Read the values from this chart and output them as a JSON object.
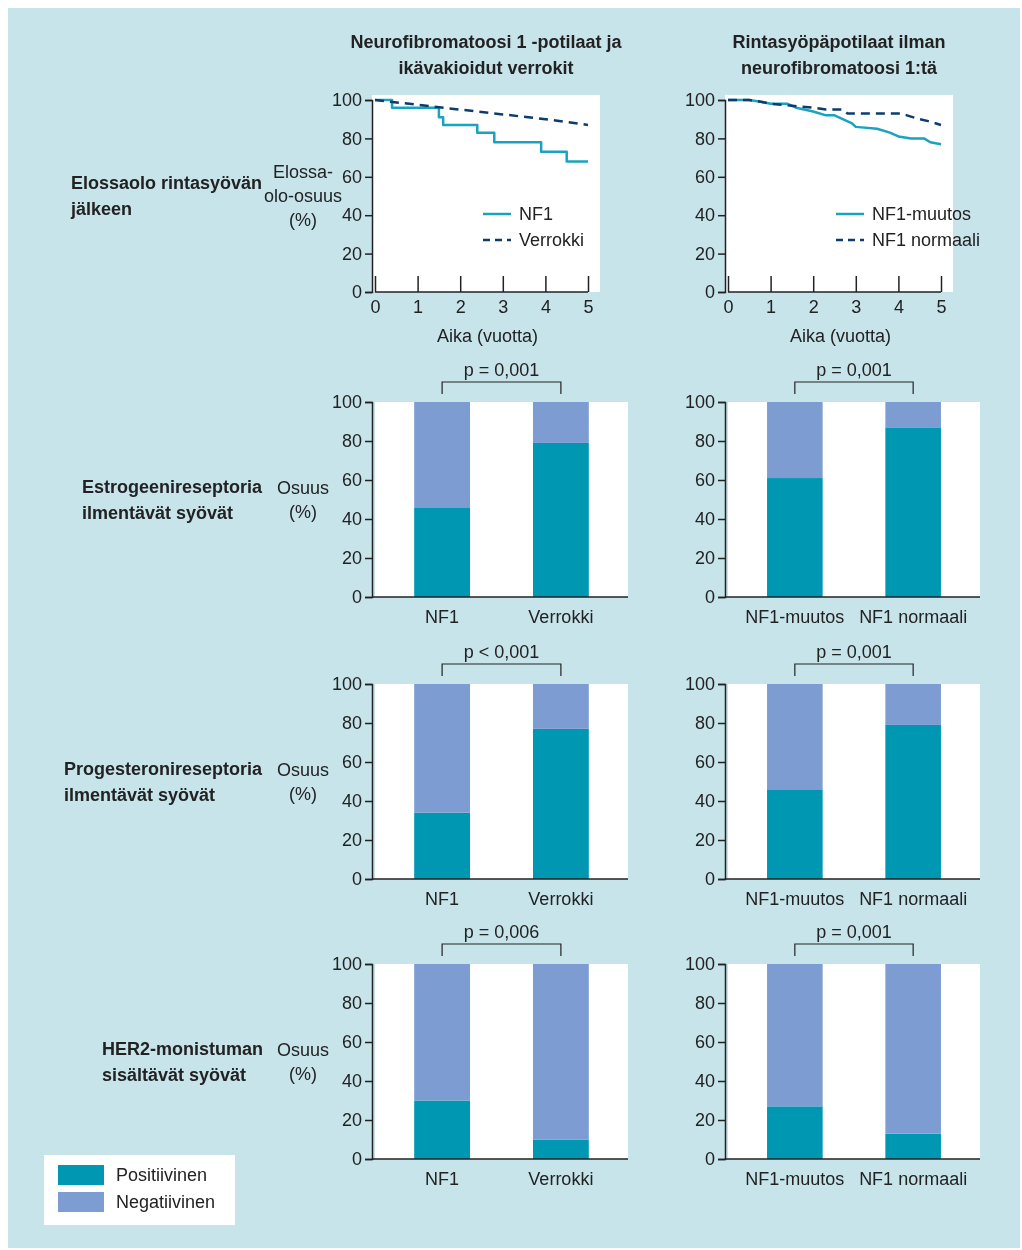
{
  "chart_data": [
    {
      "type": "line",
      "title": "Neurofibromatoosi 1 -potilaat ja ikävakioidut verrokit",
      "subtitle": "Elossaolo rintasyövän jälkeen",
      "xlabel": "Aika (vuotta)",
      "ylabel": "Elossa-olo-osuus (%)",
      "xlim": [
        0,
        5
      ],
      "xticks": [
        0,
        1,
        2,
        3,
        4,
        5
      ],
      "ylim": [
        0,
        100
      ],
      "yticks": [
        0,
        20,
        40,
        60,
        80,
        100
      ],
      "legend": "bottom right",
      "series": [
        {
          "name": "NF1",
          "type": "step",
          "color": "#1aa3be",
          "line_style": "solid",
          "x": [
            0,
            0.4,
            1.5,
            1.6,
            2.4,
            2.8,
            3.9,
            4.5,
            5
          ],
          "values": [
            100,
            96,
            91,
            87,
            83,
            78,
            73,
            68,
            68
          ]
        },
        {
          "name": "Verrokki",
          "type": "line",
          "color": "#0d3b6e",
          "line_style": "dashed",
          "x": [
            0,
            1,
            2,
            3,
            4,
            5
          ],
          "values": [
            100,
            97.5,
            95,
            92.5,
            90,
            87
          ]
        }
      ]
    },
    {
      "type": "line",
      "title": "Rintasyöpäpotilaat ilman neurofibromatoosi 1:tä",
      "xlabel": "Aika (vuotta)",
      "xlim": [
        0,
        5
      ],
      "xticks": [
        0,
        1,
        2,
        3,
        4,
        5
      ],
      "ylim": [
        0,
        100
      ],
      "yticks": [
        0,
        20,
        40,
        60,
        80,
        100
      ],
      "legend": "bottom right",
      "series": [
        {
          "name": "NF1-muutos",
          "type": "line",
          "color": "#1aa3be",
          "line_style": "solid",
          "x": [
            0,
            0.5,
            0.8,
            1,
            1.4,
            1.6,
            2,
            2.3,
            2.5,
            2.9,
            3,
            3.5,
            3.8,
            4,
            4.3,
            4.6,
            4.75,
            5
          ],
          "values": [
            100,
            100,
            99,
            98,
            98,
            96,
            94,
            92,
            92,
            88,
            86,
            85,
            83,
            81,
            80,
            80,
            78,
            77
          ]
        },
        {
          "name": "NF1 normaali",
          "type": "line",
          "color": "#0d3b6e",
          "line_style": "dashed",
          "x": [
            0,
            0.5,
            0.8,
            1,
            1.5,
            2,
            2.3,
            2.7,
            2.8,
            4,
            4.2,
            4.5,
            4.7,
            5
          ],
          "values": [
            100,
            100,
            99,
            98,
            97,
            96,
            95,
            95,
            93,
            93,
            92,
            90,
            89,
            87
          ]
        }
      ]
    },
    {
      "type": "bar",
      "stacked": true,
      "subtitle": "Estrogeenireseptoria ilmentävät syövät",
      "ylabel": "Osuus (%)",
      "categories": [
        "NF1",
        "Verrokki"
      ],
      "ylim": [
        0,
        100
      ],
      "yticks": [
        0,
        20,
        40,
        60,
        80,
        100
      ],
      "annotations": [
        "p = 0,001"
      ],
      "series": [
        {
          "color": "#0097b3",
          "values": [
            46,
            79
          ]
        },
        {
          "color": "#7d9dd2",
          "values": [
            54,
            21
          ]
        }
      ]
    },
    {
      "type": "bar",
      "stacked": true,
      "categories": [
        "NF1-muutos",
        "NF1 normaali"
      ],
      "ylim": [
        0,
        100
      ],
      "yticks": [
        0,
        20,
        40,
        60,
        80,
        100
      ],
      "annotations": [
        "p = 0,001"
      ],
      "series": [
        {
          "color": "#0097b3",
          "values": [
            61,
            87
          ]
        },
        {
          "color": "#7d9dd2",
          "values": [
            39,
            13
          ]
        }
      ]
    },
    {
      "type": "bar",
      "stacked": true,
      "subtitle": "Progesteronireseptoria ilmentävät syövät",
      "ylabel": "Osuus (%)",
      "categories": [
        "NF1",
        "Verrokki"
      ],
      "ylim": [
        0,
        100
      ],
      "yticks": [
        0,
        20,
        40,
        60,
        80,
        100
      ],
      "annotations": [
        "p < 0,001"
      ],
      "series": [
        {
          "color": "#0097b3",
          "values": [
            34,
            77
          ]
        },
        {
          "color": "#7d9dd2",
          "values": [
            66,
            23
          ]
        }
      ]
    },
    {
      "type": "bar",
      "stacked": true,
      "categories": [
        "NF1-muutos",
        "NF1 normaali"
      ],
      "ylim": [
        0,
        100
      ],
      "yticks": [
        0,
        20,
        40,
        60,
        80,
        100
      ],
      "annotations": [
        "p = 0,001"
      ],
      "series": [
        {
          "color": "#0097b3",
          "values": [
            46,
            79
          ]
        },
        {
          "color": "#7d9dd2",
          "values": [
            54,
            21
          ]
        }
      ]
    },
    {
      "type": "bar",
      "stacked": true,
      "subtitle": "HER2-monistuman sisältävät syövät",
      "ylabel": "Osuus (%)",
      "categories": [
        "NF1",
        "Verrokki"
      ],
      "ylim": [
        0,
        100
      ],
      "yticks": [
        0,
        20,
        40,
        60,
        80,
        100
      ],
      "annotations": [
        "p = 0,006"
      ],
      "legend": "bottom left",
      "series": [
        {
          "name": "Positiivinen",
          "color": "#0097b3",
          "values": [
            30,
            10
          ]
        },
        {
          "name": "Negatiivinen",
          "color": "#7d9dd2",
          "values": [
            70,
            90
          ]
        }
      ]
    },
    {
      "type": "bar",
      "stacked": true,
      "categories": [
        "NF1-muutos",
        "NF1 normaali"
      ],
      "ylim": [
        0,
        100
      ],
      "yticks": [
        0,
        20,
        40,
        60,
        80,
        100
      ],
      "annotations": [
        "p = 0,001"
      ],
      "series": [
        {
          "color": "#0097b3",
          "values": [
            27,
            13
          ]
        },
        {
          "color": "#7d9dd2",
          "values": [
            73,
            87
          ]
        }
      ]
    }
  ]
}
